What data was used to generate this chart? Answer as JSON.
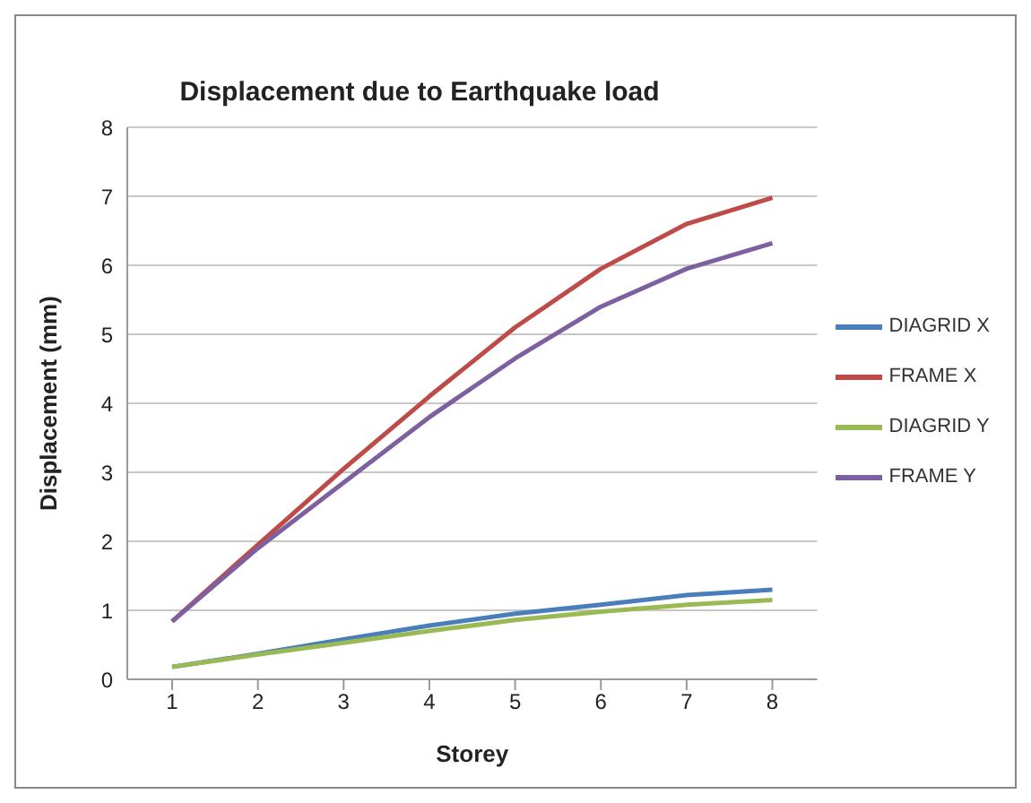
{
  "chart_data": {
    "type": "line",
    "title": "Displacement due to Earthquake load",
    "xlabel": "Storey",
    "ylabel": "Displacement (mm)",
    "categories": [
      "1",
      "2",
      "3",
      "4",
      "5",
      "6",
      "7",
      "8"
    ],
    "series": [
      {
        "name": "DIAGRID X",
        "color": "#4a7ebb",
        "values": [
          0.18,
          0.37,
          0.58,
          0.78,
          0.95,
          1.08,
          1.22,
          1.3
        ]
      },
      {
        "name": "FRAME X",
        "color": "#be4b48",
        "values": [
          0.84,
          1.95,
          3.05,
          4.1,
          5.1,
          5.95,
          6.6,
          6.98
        ]
      },
      {
        "name": "DIAGRID Y",
        "color": "#98b954",
        "values": [
          0.18,
          0.36,
          0.53,
          0.7,
          0.86,
          0.98,
          1.08,
          1.15
        ]
      },
      {
        "name": "FRAME Y",
        "color": "#7d60a0",
        "values": [
          0.84,
          1.9,
          2.85,
          3.8,
          4.65,
          5.4,
          5.95,
          6.32
        ]
      }
    ],
    "ylim": [
      0,
      8
    ],
    "yticks": [
      0,
      1,
      2,
      3,
      4,
      5,
      6,
      7,
      8
    ],
    "grid": "y",
    "legend": "right",
    "marker": "none",
    "line_style": "solid"
  }
}
